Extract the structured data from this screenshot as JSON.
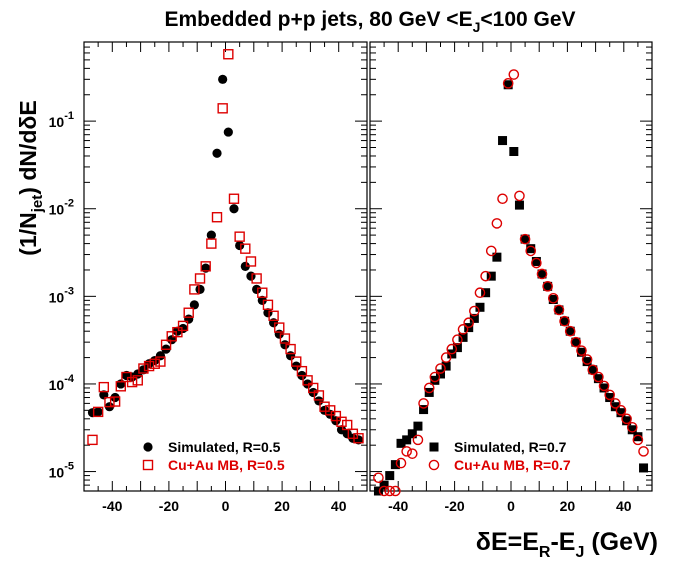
{
  "title": "Embedded p+p jets, 80 GeV <E<tspan>J</tspan><100 GeV",
  "title_parts": {
    "a": "Embedded p+p jets, 80 GeV <E",
    "sub": "J",
    "b": "<100 GeV"
  },
  "ylabel_parts": {
    "a": "(1/N",
    "sub": "jet",
    "b": ") dN/dδE"
  },
  "xlabel_parts": {
    "a": "δE=E",
    "sub1": "R",
    "b": "-E",
    "sub2": "J",
    "c": " (GeV)"
  },
  "chart_data": [
    {
      "type": "scatter",
      "panel": "left",
      "x_ticks": [
        -40,
        -20,
        0,
        20,
        40
      ],
      "xlim": [
        -50,
        50
      ],
      "ylim": [
        6e-06,
        0.8
      ],
      "y_scale": "log",
      "y_tick_labels": [
        {
          "base": "10",
          "exp": "-1",
          "value": 0.1
        },
        {
          "base": "10",
          "exp": "-2",
          "value": 0.01
        },
        {
          "base": "10",
          "exp": "-3",
          "value": 0.001
        },
        {
          "base": "10",
          "exp": "-4",
          "value": 0.0001
        },
        {
          "base": "10",
          "exp": "-5",
          "value": 1e-05
        }
      ],
      "legend_position": "bottom-left",
      "series": [
        {
          "name": "Simulated, R=0.5",
          "marker": "filled-circle",
          "color": "#000000",
          "x": [
            -47,
            -45,
            -43,
            -41,
            -39,
            -37,
            -35,
            -33,
            -31,
            -29,
            -27,
            -25,
            -23,
            -21,
            -19,
            -17,
            -15,
            -13,
            -11,
            -9,
            -7,
            -5,
            -3,
            -1,
            1,
            3,
            5,
            7,
            9,
            11,
            13,
            15,
            17,
            19,
            21,
            23,
            25,
            27,
            29,
            31,
            33,
            35,
            37,
            39,
            41,
            43,
            45,
            47
          ],
          "y": [
            4.7e-05,
            4.8e-05,
            7.5e-05,
            5.5e-05,
            7e-05,
            0.0001,
            0.000125,
            0.00012,
            0.00013,
            0.000145,
            0.00017,
            0.000185,
            0.00021,
            0.00025,
            0.00032,
            0.0004,
            0.00043,
            0.00055,
            0.0008,
            0.0012,
            0.0021,
            0.005,
            0.043,
            0.3,
            0.075,
            0.01,
            0.0038,
            0.0022,
            0.0017,
            0.0012,
            0.0009,
            0.00065,
            0.0005,
            0.00037,
            0.00028,
            0.00021,
            0.00016,
            0.000125,
            0.0001,
            8e-05,
            6.4e-05,
            5e-05,
            4.5e-05,
            3.8e-05,
            3e-05,
            2.7e-05,
            2.4e-05,
            2.3e-05
          ]
        },
        {
          "name": "Cu+Au MB, R=0.5",
          "marker": "open-square",
          "color": "#dd0000",
          "x": [
            -47,
            -45,
            -43,
            -41,
            -39,
            -37,
            -35,
            -33,
            -31,
            -29,
            -27,
            -25,
            -23,
            -21,
            -19,
            -17,
            -15,
            -13,
            -11,
            -9,
            -7,
            -5,
            -3,
            -1,
            1,
            3,
            5,
            7,
            9,
            11,
            13,
            15,
            17,
            19,
            21,
            23,
            25,
            27,
            29,
            31,
            33,
            35,
            37,
            39,
            41,
            43,
            45,
            47
          ],
          "y": [
            2.3e-05,
            4.8e-05,
            9.2e-05,
            6.2e-05,
            6.3e-05,
            9.4e-05,
            0.00012,
            0.000105,
            0.00011,
            0.00015,
            0.00016,
            0.00017,
            0.00018,
            0.00028,
            0.00035,
            0.00039,
            0.00046,
            0.00065,
            0.0012,
            0.0016,
            0.0022,
            0.004,
            0.008,
            0.14,
            0.58,
            0.013,
            0.0048,
            0.0035,
            0.0025,
            0.0016,
            0.0011,
            0.0008,
            0.0006,
            0.00044,
            0.00033,
            0.00025,
            0.00018,
            0.00014,
            0.00011,
            9e-05,
            7.4e-05,
            5.5e-05,
            5e-05,
            4.3e-05,
            3.7e-05,
            3.4e-05,
            2.7e-05,
            2.4e-05
          ]
        }
      ]
    },
    {
      "type": "scatter",
      "panel": "right",
      "x_ticks": [
        -40,
        -20,
        0,
        20,
        40
      ],
      "xlim": [
        -50,
        50
      ],
      "ylim": [
        6e-06,
        0.8
      ],
      "y_scale": "log",
      "legend_position": "bottom-right",
      "series": [
        {
          "name": "Simulated, R=0.7",
          "marker": "filled-square",
          "color": "#000000",
          "x": [
            -47,
            -45,
            -43,
            -41,
            -39,
            -37,
            -35,
            -33,
            -31,
            -29,
            -27,
            -25,
            -23,
            -21,
            -19,
            -17,
            -15,
            -13,
            -11,
            -9,
            -7,
            -5,
            -3,
            -1,
            1,
            3,
            5,
            7,
            9,
            11,
            13,
            15,
            17,
            19,
            21,
            23,
            25,
            27,
            29,
            31,
            33,
            35,
            37,
            39,
            41,
            43,
            45,
            47
          ],
          "y": [
            5.8e-06,
            7e-06,
            9e-06,
            1.2e-05,
            2.1e-05,
            2.3e-05,
            2.7e-05,
            3.3e-05,
            5.1e-05,
            8e-05,
            0.00011,
            0.00013,
            0.00016,
            0.00022,
            0.00026,
            0.00034,
            0.00044,
            0.00056,
            0.00075,
            0.0011,
            0.0017,
            0.0028,
            0.06,
            0.26,
            0.045,
            0.011,
            0.0045,
            0.0035,
            0.0025,
            0.0018,
            0.0013,
            0.00092,
            0.0007,
            0.00052,
            0.0004,
            0.0003,
            0.00023,
            0.00018,
            0.000145,
            0.000115,
            9e-05,
            7e-05,
            5.5e-05,
            4.7e-05,
            3.8e-05,
            3e-05,
            2.5e-05,
            1.1e-05
          ]
        },
        {
          "name": "Cu+Au MB, R=0.7",
          "marker": "open-circle",
          "color": "#dd0000",
          "x": [
            -47,
            -45,
            -43,
            -41,
            -39,
            -37,
            -35,
            -33,
            -31,
            -29,
            -27,
            -25,
            -23,
            -21,
            -19,
            -17,
            -15,
            -13,
            -11,
            -9,
            -7,
            -5,
            -3,
            -1,
            1,
            3,
            5,
            7,
            9,
            11,
            13,
            15,
            17,
            19,
            21,
            23,
            25,
            27,
            29,
            31,
            33,
            35,
            37,
            39,
            41,
            43,
            45,
            47
          ],
          "y": [
            8.5e-06,
            6e-06,
            5e-06,
            5.5e-06,
            1.25e-05,
            1.7e-05,
            1.6e-05,
            2.3e-05,
            6e-05,
            9e-05,
            0.00012,
            0.00015,
            0.0002,
            0.00025,
            0.00032,
            0.00042,
            0.0005,
            0.00068,
            0.0011,
            0.0017,
            0.0033,
            0.0068,
            0.013,
            0.27,
            0.34,
            0.014,
            0.0045,
            0.0033,
            0.0024,
            0.0018,
            0.0013,
            0.00095,
            0.0007,
            0.00052,
            0.0004,
            0.0003,
            0.00024,
            0.00019,
            0.000145,
            0.00012,
            9.5e-05,
            7.5e-05,
            6e-05,
            5e-05,
            4e-05,
            3.2e-05,
            2.3e-05,
            1.7e-05
          ]
        }
      ]
    }
  ]
}
